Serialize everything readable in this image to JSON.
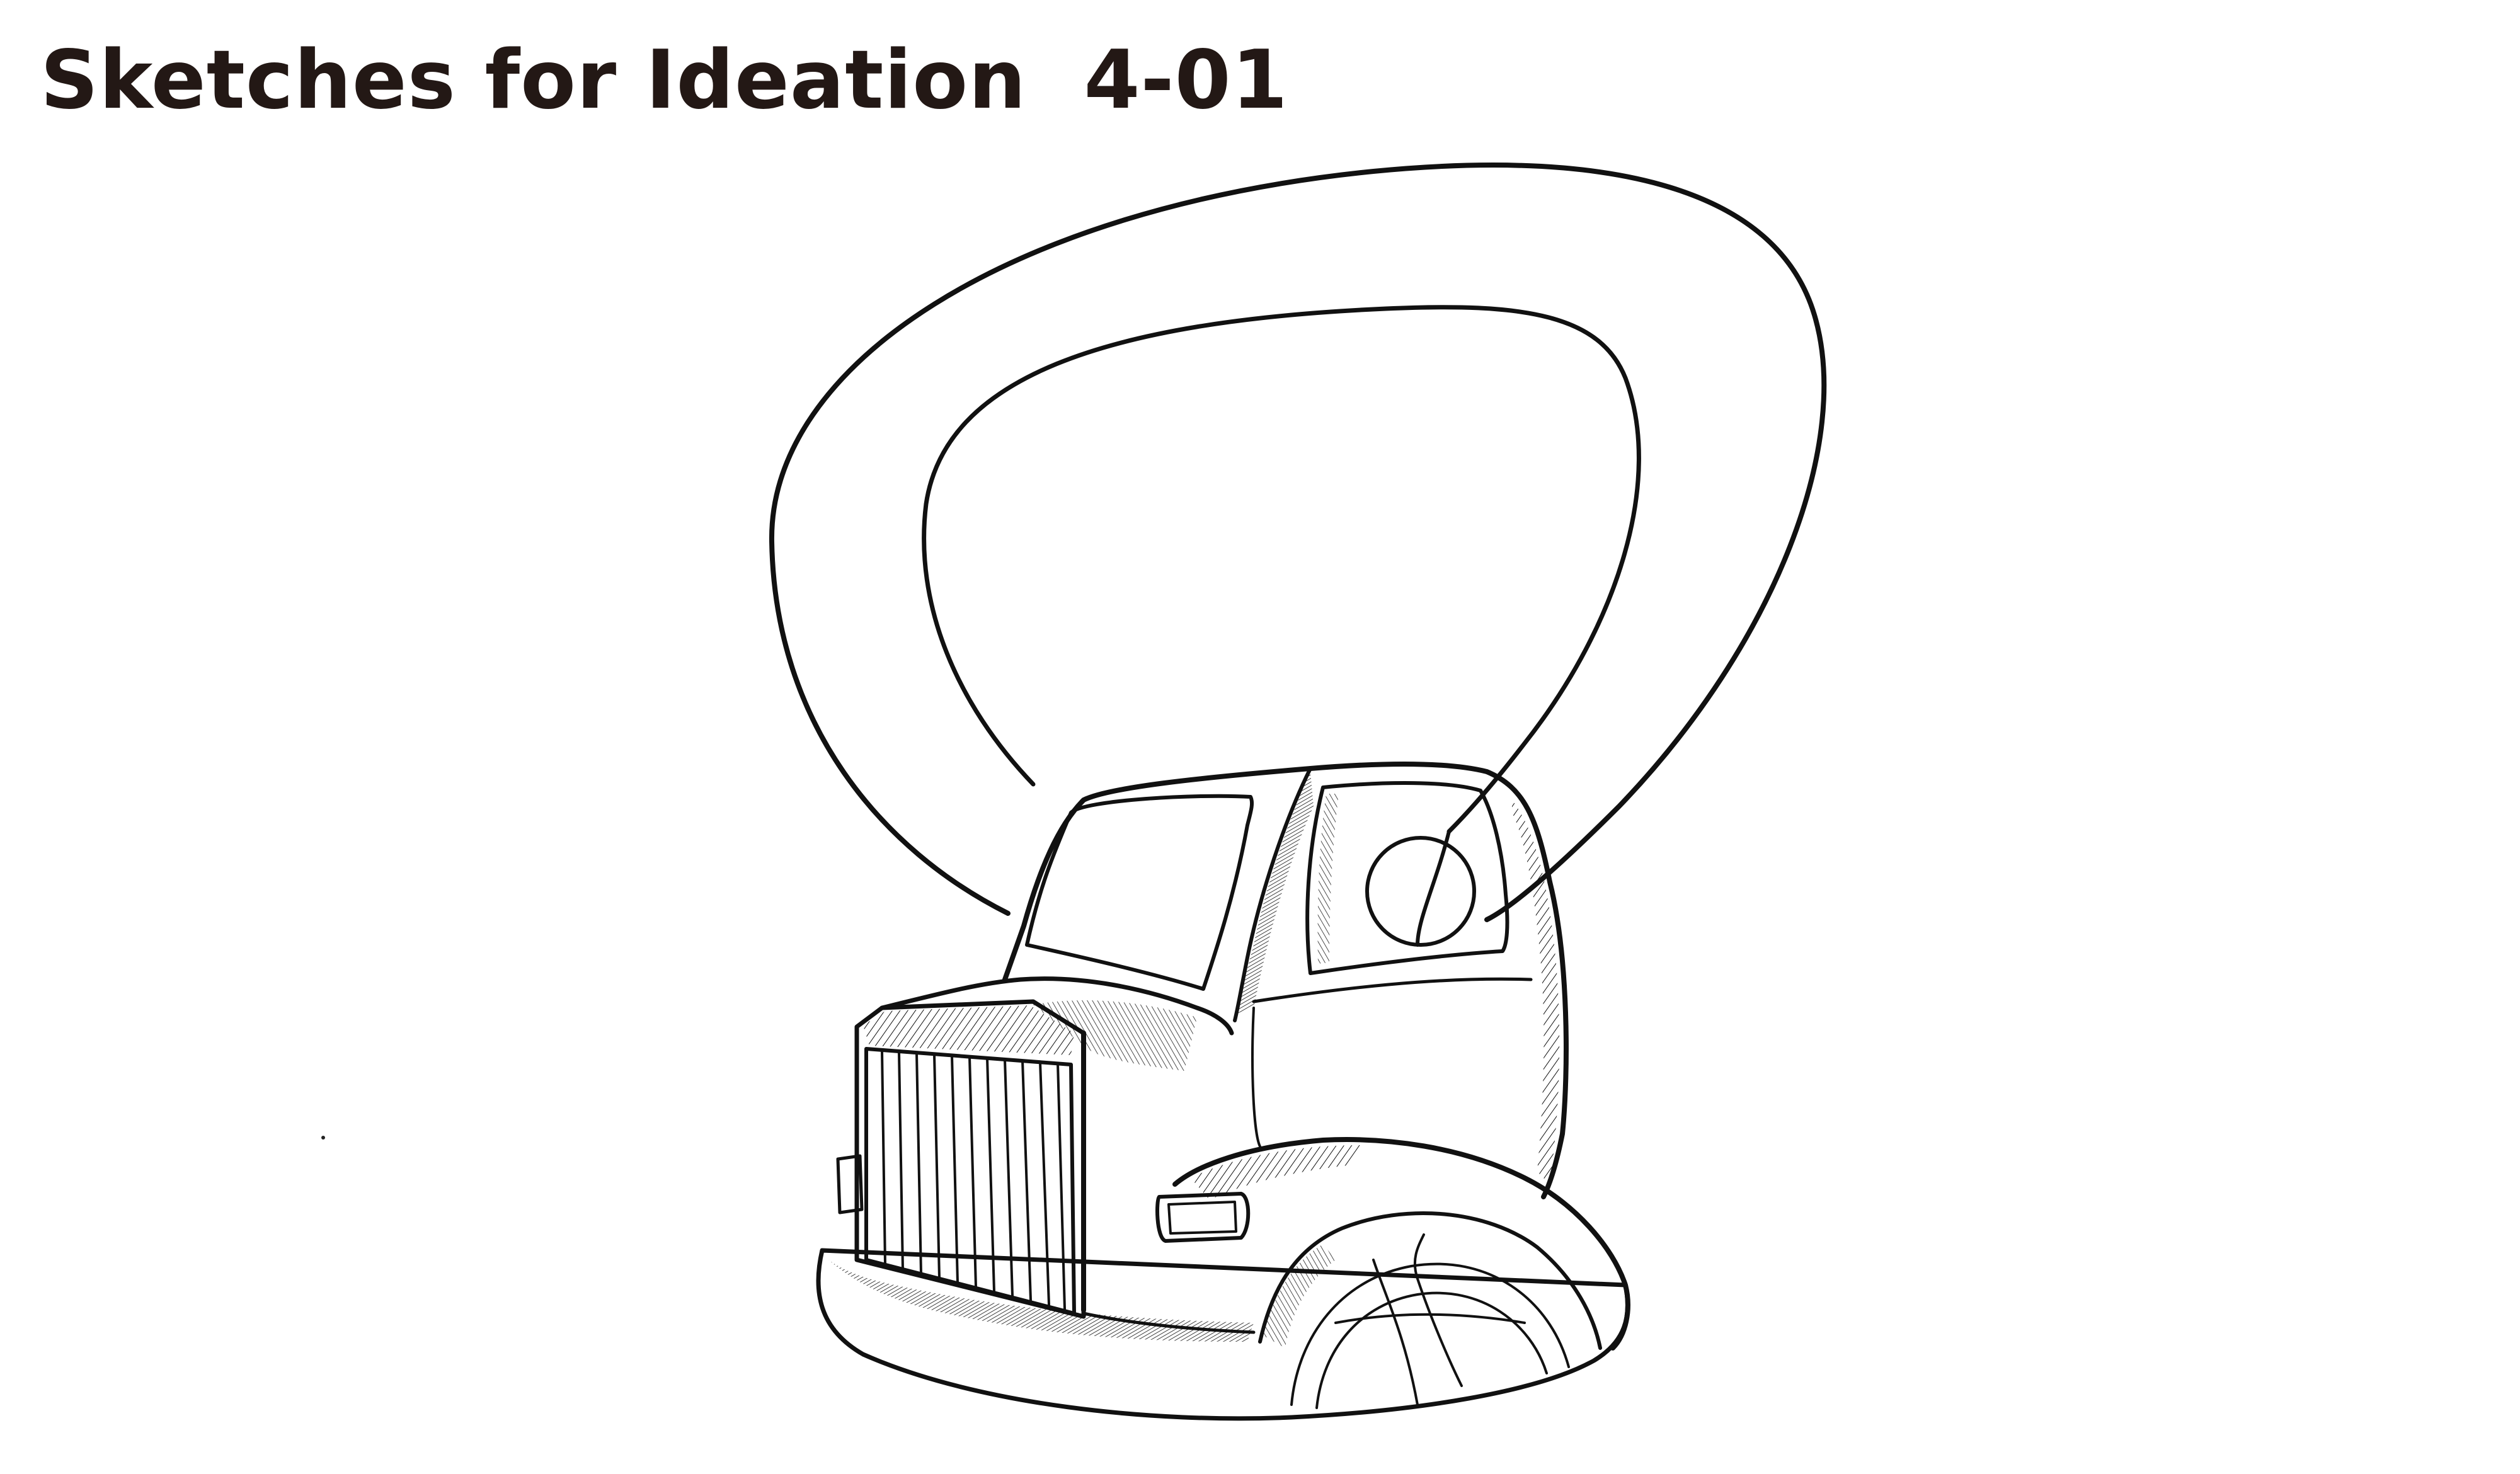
{
  "page": {
    "title": "Sketches for Ideation  4-01"
  },
  "illustration": {
    "subject": "truck-cab-kettlebell-sketch",
    "style": "pencil-line-drawing",
    "ink_color": "#111111",
    "text_color": "#231815",
    "background": "#ffffff"
  }
}
